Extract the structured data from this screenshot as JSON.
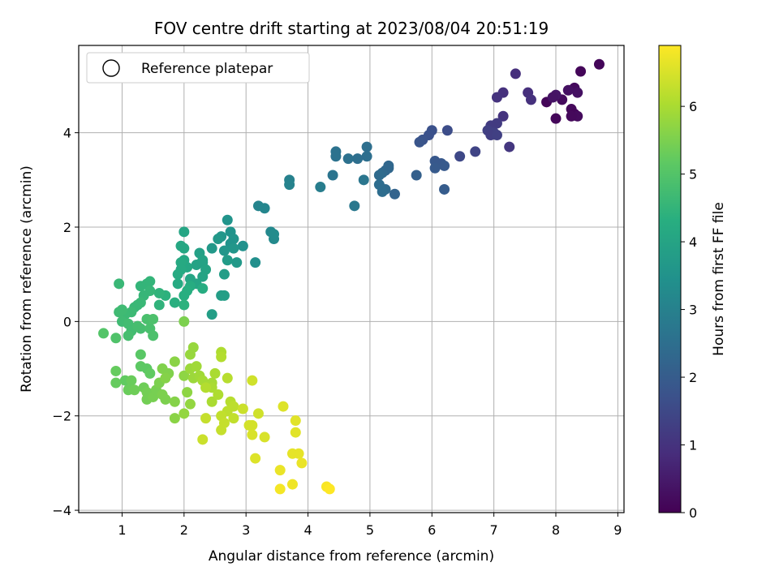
{
  "chart_data": {
    "type": "scatter",
    "title": "FOV centre drift starting at 2023/08/04 20:51:19",
    "xlabel": "Angular distance from reference (arcmin)",
    "ylabel": "Rotation from reference (arcmin)",
    "xlim": [
      0.3,
      9.1
    ],
    "ylim": [
      -4.05,
      5.85
    ],
    "xticks": [
      1,
      2,
      3,
      4,
      5,
      6,
      7,
      8,
      9
    ],
    "yticks": [
      -4,
      -2,
      0,
      2,
      4
    ],
    "grid": true,
    "legend": {
      "location": "upper-left",
      "entries": [
        "Reference platepar"
      ]
    },
    "colorbar": {
      "label": "Hours from first FF file",
      "colormap": "viridis",
      "range": [
        0,
        6.9
      ],
      "ticks": [
        0,
        1,
        2,
        3,
        4,
        5,
        6
      ]
    },
    "points": [
      [
        8.7,
        5.45,
        0.1
      ],
      [
        8.4,
        5.3,
        0.1
      ],
      [
        8.3,
        4.95,
        0.2
      ],
      [
        8.35,
        4.85,
        0.3
      ],
      [
        8.1,
        4.7,
        0.2
      ],
      [
        7.85,
        4.65,
        0.1
      ],
      [
        8.2,
        4.9,
        0.3
      ],
      [
        8.0,
        4.8,
        0.4
      ],
      [
        8.25,
        4.5,
        0.15
      ],
      [
        8.3,
        4.4,
        0.1
      ],
      [
        8.35,
        4.35,
        0.2
      ],
      [
        8.0,
        4.3,
        0.1
      ],
      [
        8.25,
        4.35,
        0.15
      ],
      [
        7.95,
        4.75,
        0.35
      ],
      [
        7.35,
        5.25,
        0.9
      ],
      [
        7.55,
        4.85,
        0.9
      ],
      [
        7.6,
        4.7,
        0.95
      ],
      [
        7.15,
        4.85,
        0.95
      ],
      [
        7.05,
        4.75,
        1.0
      ],
      [
        7.15,
        4.35,
        1.0
      ],
      [
        7.25,
        3.7,
        1.1
      ],
      [
        7.05,
        4.2,
        1.2
      ],
      [
        6.95,
        4.15,
        1.2
      ],
      [
        7.0,
        4.0,
        1.3
      ],
      [
        6.9,
        4.05,
        1.3
      ],
      [
        6.95,
        3.95,
        1.25
      ],
      [
        7.05,
        3.95,
        1.3
      ],
      [
        6.7,
        3.6,
        1.4
      ],
      [
        6.45,
        3.5,
        1.5
      ],
      [
        6.25,
        4.05,
        1.6
      ],
      [
        6.0,
        4.05,
        1.7
      ],
      [
        5.95,
        3.95,
        1.7
      ],
      [
        5.85,
        3.85,
        1.75
      ],
      [
        5.8,
        3.8,
        1.8
      ],
      [
        6.05,
        3.4,
        1.9
      ],
      [
        6.15,
        3.35,
        1.9
      ],
      [
        6.05,
        3.25,
        1.95
      ],
      [
        6.2,
        3.3,
        1.95
      ],
      [
        6.2,
        2.8,
        2.0
      ],
      [
        5.75,
        3.1,
        2.1
      ],
      [
        5.4,
        2.7,
        2.2
      ],
      [
        5.3,
        3.25,
        2.3
      ],
      [
        5.25,
        3.2,
        2.3
      ],
      [
        5.2,
        3.15,
        2.35
      ],
      [
        5.15,
        3.1,
        2.4
      ],
      [
        5.25,
        2.8,
        2.4
      ],
      [
        5.2,
        2.75,
        2.45
      ],
      [
        5.15,
        2.9,
        2.45
      ],
      [
        5.3,
        3.3,
        2.3
      ],
      [
        4.95,
        3.7,
        2.5
      ],
      [
        4.95,
        3.5,
        2.5
      ],
      [
        4.8,
        3.45,
        2.5
      ],
      [
        4.65,
        3.45,
        2.55
      ],
      [
        4.45,
        3.6,
        2.6
      ],
      [
        4.45,
        3.5,
        2.6
      ],
      [
        4.4,
        3.1,
        2.65
      ],
      [
        4.9,
        3.0,
        2.7
      ],
      [
        4.75,
        2.45,
        2.75
      ],
      [
        4.2,
        2.85,
        2.9
      ],
      [
        3.7,
        3.0,
        3.0
      ],
      [
        3.7,
        2.9,
        3.05
      ],
      [
        3.2,
        2.45,
        3.1
      ],
      [
        3.3,
        2.4,
        3.15
      ],
      [
        3.4,
        1.9,
        3.2
      ],
      [
        3.45,
        1.75,
        3.25
      ],
      [
        3.45,
        1.85,
        3.3
      ],
      [
        3.15,
        1.25,
        3.4
      ],
      [
        2.95,
        1.6,
        3.45
      ],
      [
        2.75,
        1.9,
        3.5
      ],
      [
        2.8,
        1.75,
        3.55
      ],
      [
        2.75,
        1.65,
        3.5
      ],
      [
        2.8,
        1.55,
        3.6
      ],
      [
        2.7,
        2.15,
        3.55
      ],
      [
        2.65,
        1.5,
        3.6
      ],
      [
        2.6,
        1.8,
        3.6
      ],
      [
        2.55,
        1.75,
        3.65
      ],
      [
        2.45,
        1.55,
        3.65
      ],
      [
        2.85,
        1.25,
        3.7
      ],
      [
        2.7,
        1.3,
        3.75
      ],
      [
        2.65,
        1.0,
        3.8
      ],
      [
        2.6,
        0.55,
        3.8
      ],
      [
        2.65,
        0.55,
        3.85
      ],
      [
        2.45,
        0.15,
        3.85
      ],
      [
        2.3,
        1.25,
        3.9
      ],
      [
        2.25,
        1.45,
        3.9
      ],
      [
        2.3,
        1.3,
        3.95
      ],
      [
        2.2,
        1.2,
        3.95
      ],
      [
        2.35,
        1.1,
        4.0
      ],
      [
        2.3,
        0.95,
        4.0
      ],
      [
        2.2,
        0.8,
        4.05
      ],
      [
        2.1,
        0.9,
        4.05
      ],
      [
        2.05,
        1.15,
        4.1
      ],
      [
        2.0,
        1.3,
        4.1
      ],
      [
        1.95,
        1.25,
        4.15
      ],
      [
        1.95,
        1.1,
        4.15
      ],
      [
        1.9,
        1.0,
        4.2
      ],
      [
        1.9,
        0.8,
        4.2
      ],
      [
        2.0,
        1.55,
        4.1
      ],
      [
        2.0,
        1.9,
        4.05
      ],
      [
        1.95,
        1.6,
        4.1
      ],
      [
        2.3,
        0.7,
        4.25
      ],
      [
        2.1,
        0.75,
        4.25
      ],
      [
        2.05,
        0.65,
        4.3
      ],
      [
        2.0,
        0.55,
        4.3
      ],
      [
        1.85,
        0.4,
        4.35
      ],
      [
        2.0,
        0.35,
        4.4
      ],
      [
        1.7,
        0.55,
        4.4
      ],
      [
        1.6,
        0.6,
        4.45
      ],
      [
        1.6,
        0.35,
        4.45
      ],
      [
        1.45,
        0.85,
        4.5
      ],
      [
        1.4,
        0.8,
        4.5
      ],
      [
        1.3,
        0.75,
        4.5
      ],
      [
        1.45,
        0.65,
        4.55
      ],
      [
        1.35,
        0.55,
        4.55
      ],
      [
        1.3,
        0.4,
        4.6
      ],
      [
        1.25,
        0.35,
        4.6
      ],
      [
        1.2,
        0.3,
        4.6
      ],
      [
        1.15,
        0.2,
        4.65
      ],
      [
        1.05,
        0.15,
        4.65
      ],
      [
        1.0,
        0.25,
        4.7
      ],
      [
        0.95,
        0.2,
        4.7
      ],
      [
        1.0,
        0.0,
        4.7
      ],
      [
        1.1,
        -0.05,
        4.75
      ],
      [
        1.15,
        -0.2,
        4.75
      ],
      [
        1.1,
        -0.3,
        4.8
      ],
      [
        1.3,
        -0.15,
        4.8
      ],
      [
        1.25,
        -0.1,
        4.8
      ],
      [
        1.4,
        0.05,
        4.85
      ],
      [
        1.45,
        -0.15,
        4.85
      ],
      [
        1.5,
        0.05,
        4.9
      ],
      [
        1.5,
        -0.3,
        4.9
      ],
      [
        0.95,
        0.8,
        4.6
      ],
      [
        0.9,
        -0.35,
        4.95
      ],
      [
        0.7,
        -0.25,
        5.0
      ],
      [
        1.3,
        -0.7,
        5.1
      ],
      [
        1.3,
        -0.95,
        5.15
      ],
      [
        1.4,
        -1.0,
        5.15
      ],
      [
        1.45,
        -1.1,
        5.2
      ],
      [
        1.05,
        -1.25,
        5.2
      ],
      [
        0.9,
        -1.05,
        5.25
      ],
      [
        0.9,
        -1.3,
        5.25
      ],
      [
        1.15,
        -1.25,
        5.3
      ],
      [
        1.1,
        -1.45,
        5.3
      ],
      [
        1.2,
        -1.45,
        5.35
      ],
      [
        1.35,
        -1.4,
        5.35
      ],
      [
        1.4,
        -1.5,
        5.4
      ],
      [
        1.4,
        -1.65,
        5.4
      ],
      [
        1.5,
        -1.6,
        5.45
      ],
      [
        1.55,
        -1.45,
        5.45
      ],
      [
        1.65,
        -1.55,
        5.5
      ],
      [
        1.7,
        -1.65,
        5.5
      ],
      [
        1.6,
        -1.3,
        5.5
      ],
      [
        1.65,
        -1.0,
        5.55
      ],
      [
        1.75,
        -1.1,
        5.55
      ],
      [
        1.7,
        -1.2,
        5.6
      ],
      [
        1.85,
        -1.7,
        5.6
      ],
      [
        1.85,
        -2.05,
        5.65
      ],
      [
        1.85,
        -0.85,
        5.65
      ],
      [
        2.0,
        0.0,
        5.5
      ],
      [
        2.0,
        -1.15,
        5.7
      ],
      [
        2.05,
        -1.5,
        5.7
      ],
      [
        2.0,
        -1.95,
        5.75
      ],
      [
        2.1,
        -1.75,
        5.75
      ],
      [
        2.1,
        -0.7,
        5.8
      ],
      [
        2.15,
        -0.55,
        5.8
      ],
      [
        2.1,
        -1.0,
        5.85
      ],
      [
        2.15,
        -1.2,
        5.85
      ],
      [
        2.2,
        -0.95,
        5.9
      ],
      [
        2.25,
        -1.15,
        5.9
      ],
      [
        2.3,
        -1.25,
        5.95
      ],
      [
        2.45,
        -1.3,
        5.95
      ],
      [
        2.5,
        -1.1,
        6.0
      ],
      [
        2.45,
        -1.4,
        6.0
      ],
      [
        2.45,
        -1.7,
        6.0
      ],
      [
        2.55,
        -1.55,
        6.05
      ],
      [
        2.6,
        -0.65,
        6.05
      ],
      [
        2.6,
        -0.75,
        6.1
      ],
      [
        2.35,
        -1.4,
        6.1
      ],
      [
        2.7,
        -1.2,
        6.15
      ],
      [
        2.75,
        -1.7,
        6.15
      ],
      [
        2.8,
        -1.8,
        6.2
      ],
      [
        2.7,
        -1.9,
        6.2
      ],
      [
        2.8,
        -2.05,
        6.25
      ],
      [
        2.6,
        -2.0,
        6.25
      ],
      [
        2.65,
        -2.15,
        6.3
      ],
      [
        2.6,
        -2.3,
        6.3
      ],
      [
        2.35,
        -2.05,
        6.3
      ],
      [
        2.3,
        -2.5,
        6.35
      ],
      [
        2.95,
        -1.85,
        6.35
      ],
      [
        3.1,
        -1.25,
        6.4
      ],
      [
        3.2,
        -1.95,
        6.4
      ],
      [
        3.1,
        -2.2,
        6.45
      ],
      [
        3.05,
        -2.2,
        6.45
      ],
      [
        3.1,
        -2.4,
        6.5
      ],
      [
        3.3,
        -2.45,
        6.5
      ],
      [
        3.15,
        -2.9,
        6.55
      ],
      [
        3.6,
        -1.8,
        6.55
      ],
      [
        3.8,
        -2.1,
        6.6
      ],
      [
        3.8,
        -2.35,
        6.6
      ],
      [
        3.75,
        -2.8,
        6.65
      ],
      [
        3.85,
        -2.8,
        6.65
      ],
      [
        3.9,
        -3.0,
        6.7
      ],
      [
        3.55,
        -3.15,
        6.7
      ],
      [
        3.75,
        -3.45,
        6.75
      ],
      [
        3.55,
        -3.55,
        6.8
      ],
      [
        4.3,
        -3.5,
        6.85
      ],
      [
        4.35,
        -3.55,
        6.9
      ]
    ]
  }
}
